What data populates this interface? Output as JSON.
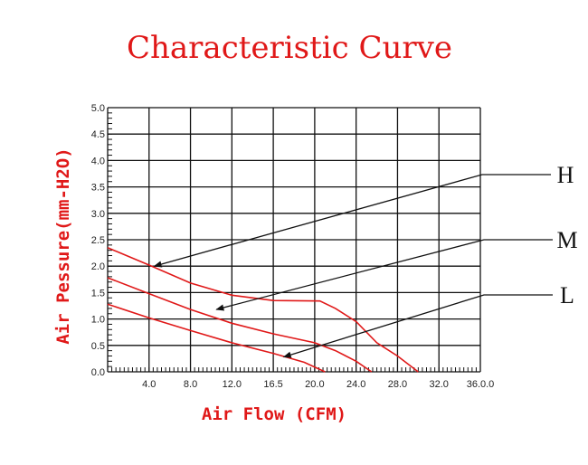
{
  "chart_data": {
    "type": "line",
    "title": "Characteristic Curve",
    "xlabel": "Air Flow (CFM)",
    "ylabel": "Air Pessure(mm-H2O)",
    "xlim": [
      0,
      36
    ],
    "ylim": [
      0,
      5
    ],
    "x_ticks": [
      "4.0",
      "8.0",
      "12.0",
      "16.5",
      "20.0",
      "24.0",
      "28.0",
      "32.0",
      "36.0.0"
    ],
    "y_ticks": [
      "0.0",
      "0.5",
      "1.0",
      "1.5",
      "2.0",
      "2.5",
      "3.0",
      "3.5",
      "4.0",
      "4.5",
      "5.0"
    ],
    "grid": true,
    "colors": {
      "curve": "#e01818",
      "title": "#e01818",
      "grid": "#111111"
    },
    "series": [
      {
        "name": "H",
        "points": [
          [
            0,
            2.35
          ],
          [
            4,
            2.02
          ],
          [
            8,
            1.68
          ],
          [
            12,
            1.45
          ],
          [
            16,
            1.35
          ],
          [
            20.5,
            1.34
          ],
          [
            22,
            1.2
          ],
          [
            24,
            0.95
          ],
          [
            26,
            0.55
          ],
          [
            28,
            0.3
          ],
          [
            30,
            0.0
          ]
        ]
      },
      {
        "name": "M",
        "points": [
          [
            0,
            1.78
          ],
          [
            4,
            1.48
          ],
          [
            8,
            1.18
          ],
          [
            12,
            0.92
          ],
          [
            16,
            0.72
          ],
          [
            20,
            0.55
          ],
          [
            22,
            0.4
          ],
          [
            24,
            0.2
          ],
          [
            25.5,
            0.0
          ]
        ]
      },
      {
        "name": "L",
        "points": [
          [
            0,
            1.28
          ],
          [
            4,
            1.02
          ],
          [
            8,
            0.78
          ],
          [
            12,
            0.55
          ],
          [
            16,
            0.35
          ],
          [
            19,
            0.18
          ],
          [
            21,
            0.0
          ]
        ]
      }
    ]
  }
}
